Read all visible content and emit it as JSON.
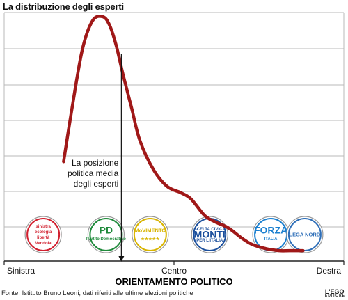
{
  "chart_data": {
    "type": "line",
    "title": "La distribuzione degli esperti",
    "xlabel": "ORIENTAMENTO POLITICO",
    "ylabel": "",
    "x_tick_labels": [
      "Sinistra",
      "Centro",
      "Destra"
    ],
    "xlim": [
      0,
      10
    ],
    "ylim": [
      0,
      6
    ],
    "grid": true,
    "series": [
      {
        "x": [
          1.75,
          2.0,
          2.3,
          2.6,
          2.9,
          3.1,
          3.3,
          3.5,
          3.75,
          4.0,
          4.4,
          4.8,
          5.2,
          5.5,
          5.9,
          6.2,
          6.6,
          7.0,
          7.3,
          7.7,
          8.1,
          8.4,
          8.8
        ],
        "y": [
          2.4,
          3.7,
          5.1,
          5.8,
          5.9,
          5.7,
          5.2,
          4.5,
          3.7,
          2.9,
          2.2,
          1.8,
          1.65,
          1.5,
          1.1,
          0.95,
          0.8,
          0.55,
          0.4,
          0.3,
          0.25,
          0.25,
          0.25
        ]
      }
    ],
    "mean_marker": {
      "x": 3.45,
      "label": "La posizione politica media degli esperti"
    },
    "parties": [
      {
        "name": "Sinistra Ecologia Libertà con Vendola",
        "x": 1.15,
        "color": "#d1202f",
        "line1": "sinistra",
        "line2": "ecologia",
        "line3": "libertà",
        "line4": "Vendola"
      },
      {
        "name": "Partito Democratico",
        "x": 3.0,
        "color": "#1f8a3b",
        "line1": "PD",
        "line2": "Partito Democratico"
      },
      {
        "name": "MoVimento 5 Stelle",
        "x": 4.3,
        "color": "#d8b400",
        "line1": "MoVIMENTO",
        "line2": "★★★★★"
      },
      {
        "name": "Scelta Civica con Monti per l'Italia",
        "x": 6.05,
        "color": "#1b4f9c",
        "line1": "SCELTA CIVICA",
        "line2": "MONTI",
        "line3": "PER L'ITALIA"
      },
      {
        "name": "Forza Italia",
        "x": 7.85,
        "color": "#1a7fcf",
        "line1": "FORZA",
        "line2": "ITALIA"
      },
      {
        "name": "Lega Nord",
        "x": 8.85,
        "color": "#2f6fb8",
        "line1": "LEGA NORD"
      }
    ]
  },
  "source": "Fonte: Istituto Bruno Leoni, dati riferiti alle ultime elezioni politiche",
  "publisher": "L'EGO",
  "colors": {
    "curve": "#a01818",
    "grid": "#b8b8b8",
    "axis": "#222222"
  }
}
